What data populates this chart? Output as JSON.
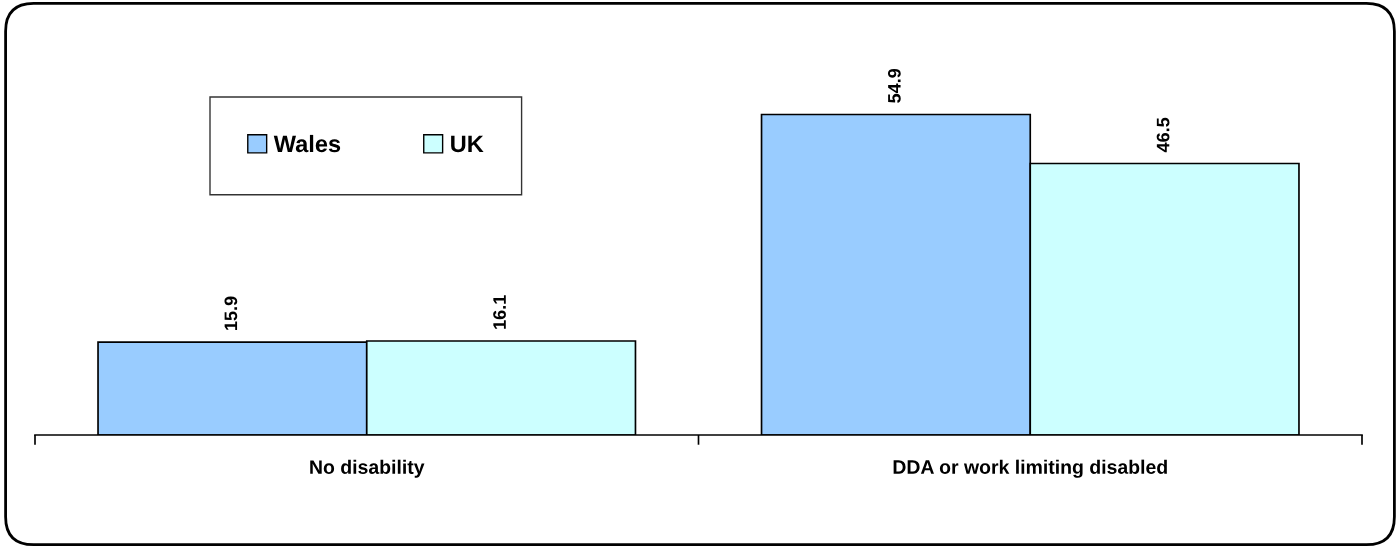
{
  "chart_data": {
    "type": "bar",
    "categories": [
      "No disability",
      "DDA or work limiting disabled"
    ],
    "series": [
      {
        "name": "Wales",
        "color": "#99ccff",
        "values": [
          15.9,
          54.9
        ]
      },
      {
        "name": "UK",
        "color": "#ccffff",
        "values": [
          16.1,
          46.5
        ]
      }
    ],
    "data_labels": true,
    "legend": "top left",
    "grid": false
  }
}
